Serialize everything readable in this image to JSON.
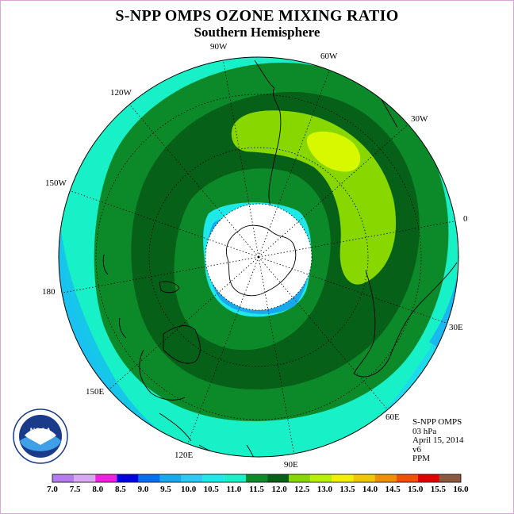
{
  "title": "S-NPP OMPS OZONE MIXING RATIO",
  "subtitle": "Southern Hemisphere",
  "longitude_labels": [
    "90W",
    "60W",
    "30W",
    "0",
    "30E",
    "60E",
    "90E",
    "120E",
    "150E",
    "180",
    "150W",
    "120W"
  ],
  "info": {
    "instrument": "S-NPP OMPS",
    "level": "03 hPa",
    "date": "April 15, 2014",
    "version": "v6",
    "units": "PPM"
  },
  "colorbar": {
    "ticks": [
      "7.0",
      "7.5",
      "8.0",
      "8.5",
      "9.0",
      "9.5",
      "10.0",
      "10.5",
      "11.0",
      "11.5",
      "12.0",
      "12.5",
      "13.0",
      "13.5",
      "14.0",
      "14.5",
      "15.0",
      "15.5",
      "16.0"
    ],
    "colors": [
      "#b57cf0",
      "#d8a8f0",
      "#f020e0",
      "#0000e0",
      "#0070f0",
      "#18a8f0",
      "#2cc8f8",
      "#1ee8e8",
      "#18f0c8",
      "#0c8a2a",
      "#066018",
      "#88d800",
      "#b8f000",
      "#f0f000",
      "#f0c800",
      "#f09000",
      "#f05000",
      "#e00000",
      "#8a5a40"
    ]
  },
  "logo": {
    "text": "NOAA"
  }
}
